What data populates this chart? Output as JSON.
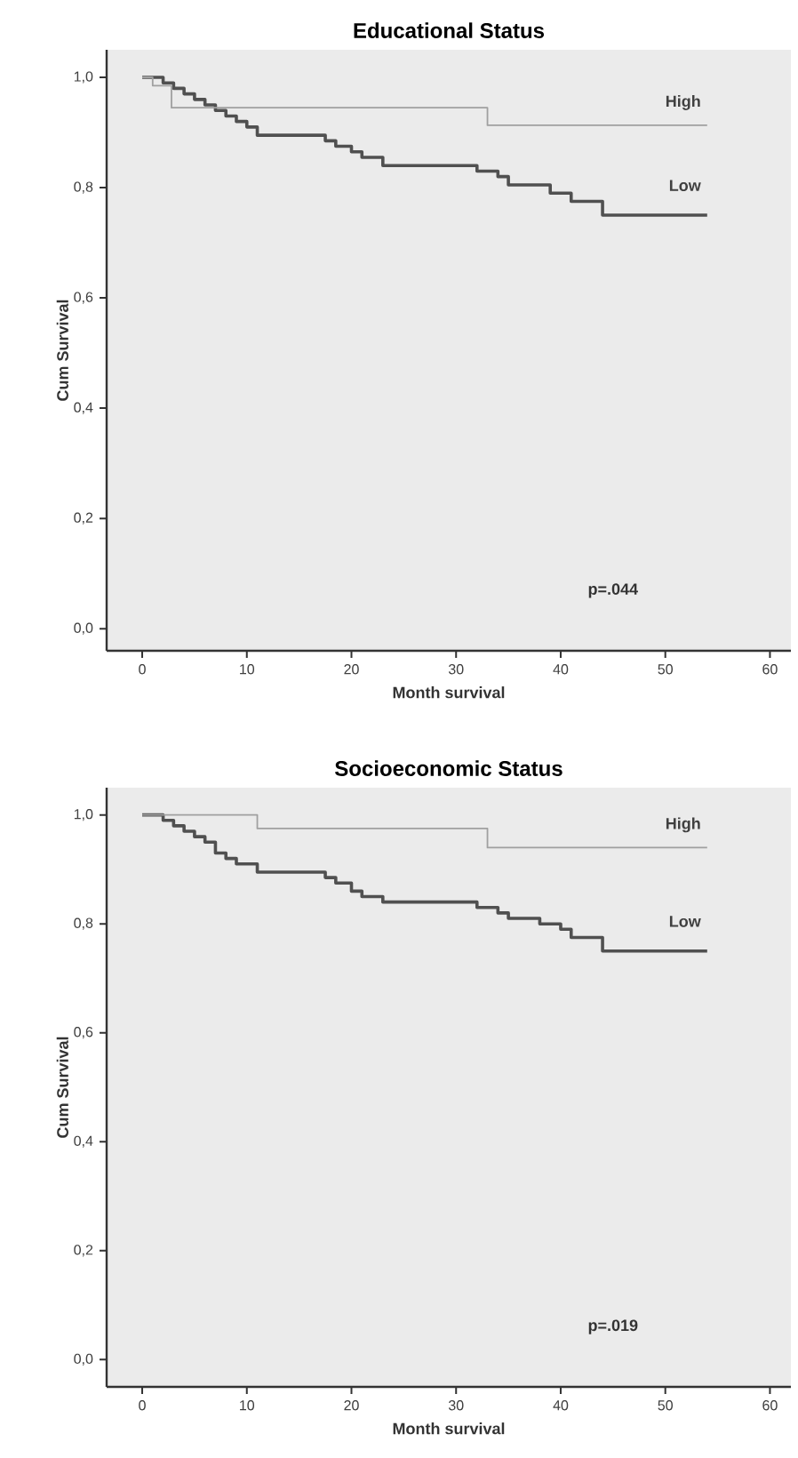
{
  "chart_data": [
    {
      "type": "step",
      "title": "Educational Status",
      "xlabel": "Month survival",
      "ylabel": "Cum Survival",
      "annotations": [
        "p=.044"
      ],
      "series": [
        {
          "name": "High",
          "color": "#a0a0a0",
          "x": [
            0,
            1,
            2.8,
            33,
            54
          ],
          "values": [
            1,
            0.985,
            0.945,
            0.913,
            0.913
          ]
        },
        {
          "name": "Low",
          "color": "#505050",
          "x": [
            0,
            2,
            3,
            4,
            5,
            6,
            7,
            8,
            9,
            10,
            11,
            17.5,
            18.5,
            20,
            21,
            23,
            32,
            34,
            35,
            39,
            41,
            44,
            54
          ],
          "values": [
            1,
            0.99,
            0.98,
            0.97,
            0.96,
            0.95,
            0.94,
            0.93,
            0.92,
            0.91,
            0.895,
            0.885,
            0.875,
            0.865,
            0.855,
            0.84,
            0.83,
            0.82,
            0.805,
            0.79,
            0.775,
            0.75,
            0.75
          ]
        }
      ],
      "xlim": [
        -3.4,
        62
      ],
      "ylim": [
        -0.04,
        1.05
      ],
      "xticks": [
        0,
        10,
        20,
        30,
        40,
        50,
        60
      ],
      "yticks": [
        {
          "value": 0,
          "label": "0,0"
        },
        {
          "value": 0.2,
          "label": "0,2"
        },
        {
          "value": 0.4,
          "label": "0,4"
        },
        {
          "value": 0.6,
          "label": "0,6"
        },
        {
          "value": 0.8,
          "label": "0,8"
        },
        {
          "value": 1,
          "label": "1,0"
        }
      ]
    },
    {
      "type": "step",
      "title": "Socioeconomic Status",
      "xlabel": "Month survival",
      "ylabel": "Cum Survival",
      "annotations": [
        "p=.019"
      ],
      "series": [
        {
          "name": "High",
          "color": "#a0a0a0",
          "x": [
            0,
            11,
            33,
            54
          ],
          "values": [
            1,
            0.975,
            0.94,
            0.94
          ]
        },
        {
          "name": "Low",
          "color": "#505050",
          "x": [
            0,
            2,
            3,
            4,
            5,
            6,
            7,
            8,
            9,
            11,
            17.5,
            18.5,
            20,
            21,
            23,
            32,
            34,
            35,
            38,
            40,
            41,
            44,
            54
          ],
          "values": [
            1,
            0.99,
            0.98,
            0.97,
            0.96,
            0.95,
            0.93,
            0.92,
            0.91,
            0.895,
            0.885,
            0.875,
            0.86,
            0.85,
            0.84,
            0.83,
            0.82,
            0.81,
            0.8,
            0.79,
            0.775,
            0.75,
            0.75
          ]
        }
      ],
      "xlim": [
        -3.4,
        62
      ],
      "ylim": [
        -0.05,
        1.05
      ],
      "xticks": [
        0,
        10,
        20,
        30,
        40,
        50,
        60
      ],
      "yticks": [
        {
          "value": 0,
          "label": "0,0"
        },
        {
          "value": 0.2,
          "label": "0,2"
        },
        {
          "value": 0.4,
          "label": "0,4"
        },
        {
          "value": 0.6,
          "label": "0,6"
        },
        {
          "value": 0.8,
          "label": "0,8"
        },
        {
          "value": 1,
          "label": "1,0"
        }
      ]
    }
  ]
}
